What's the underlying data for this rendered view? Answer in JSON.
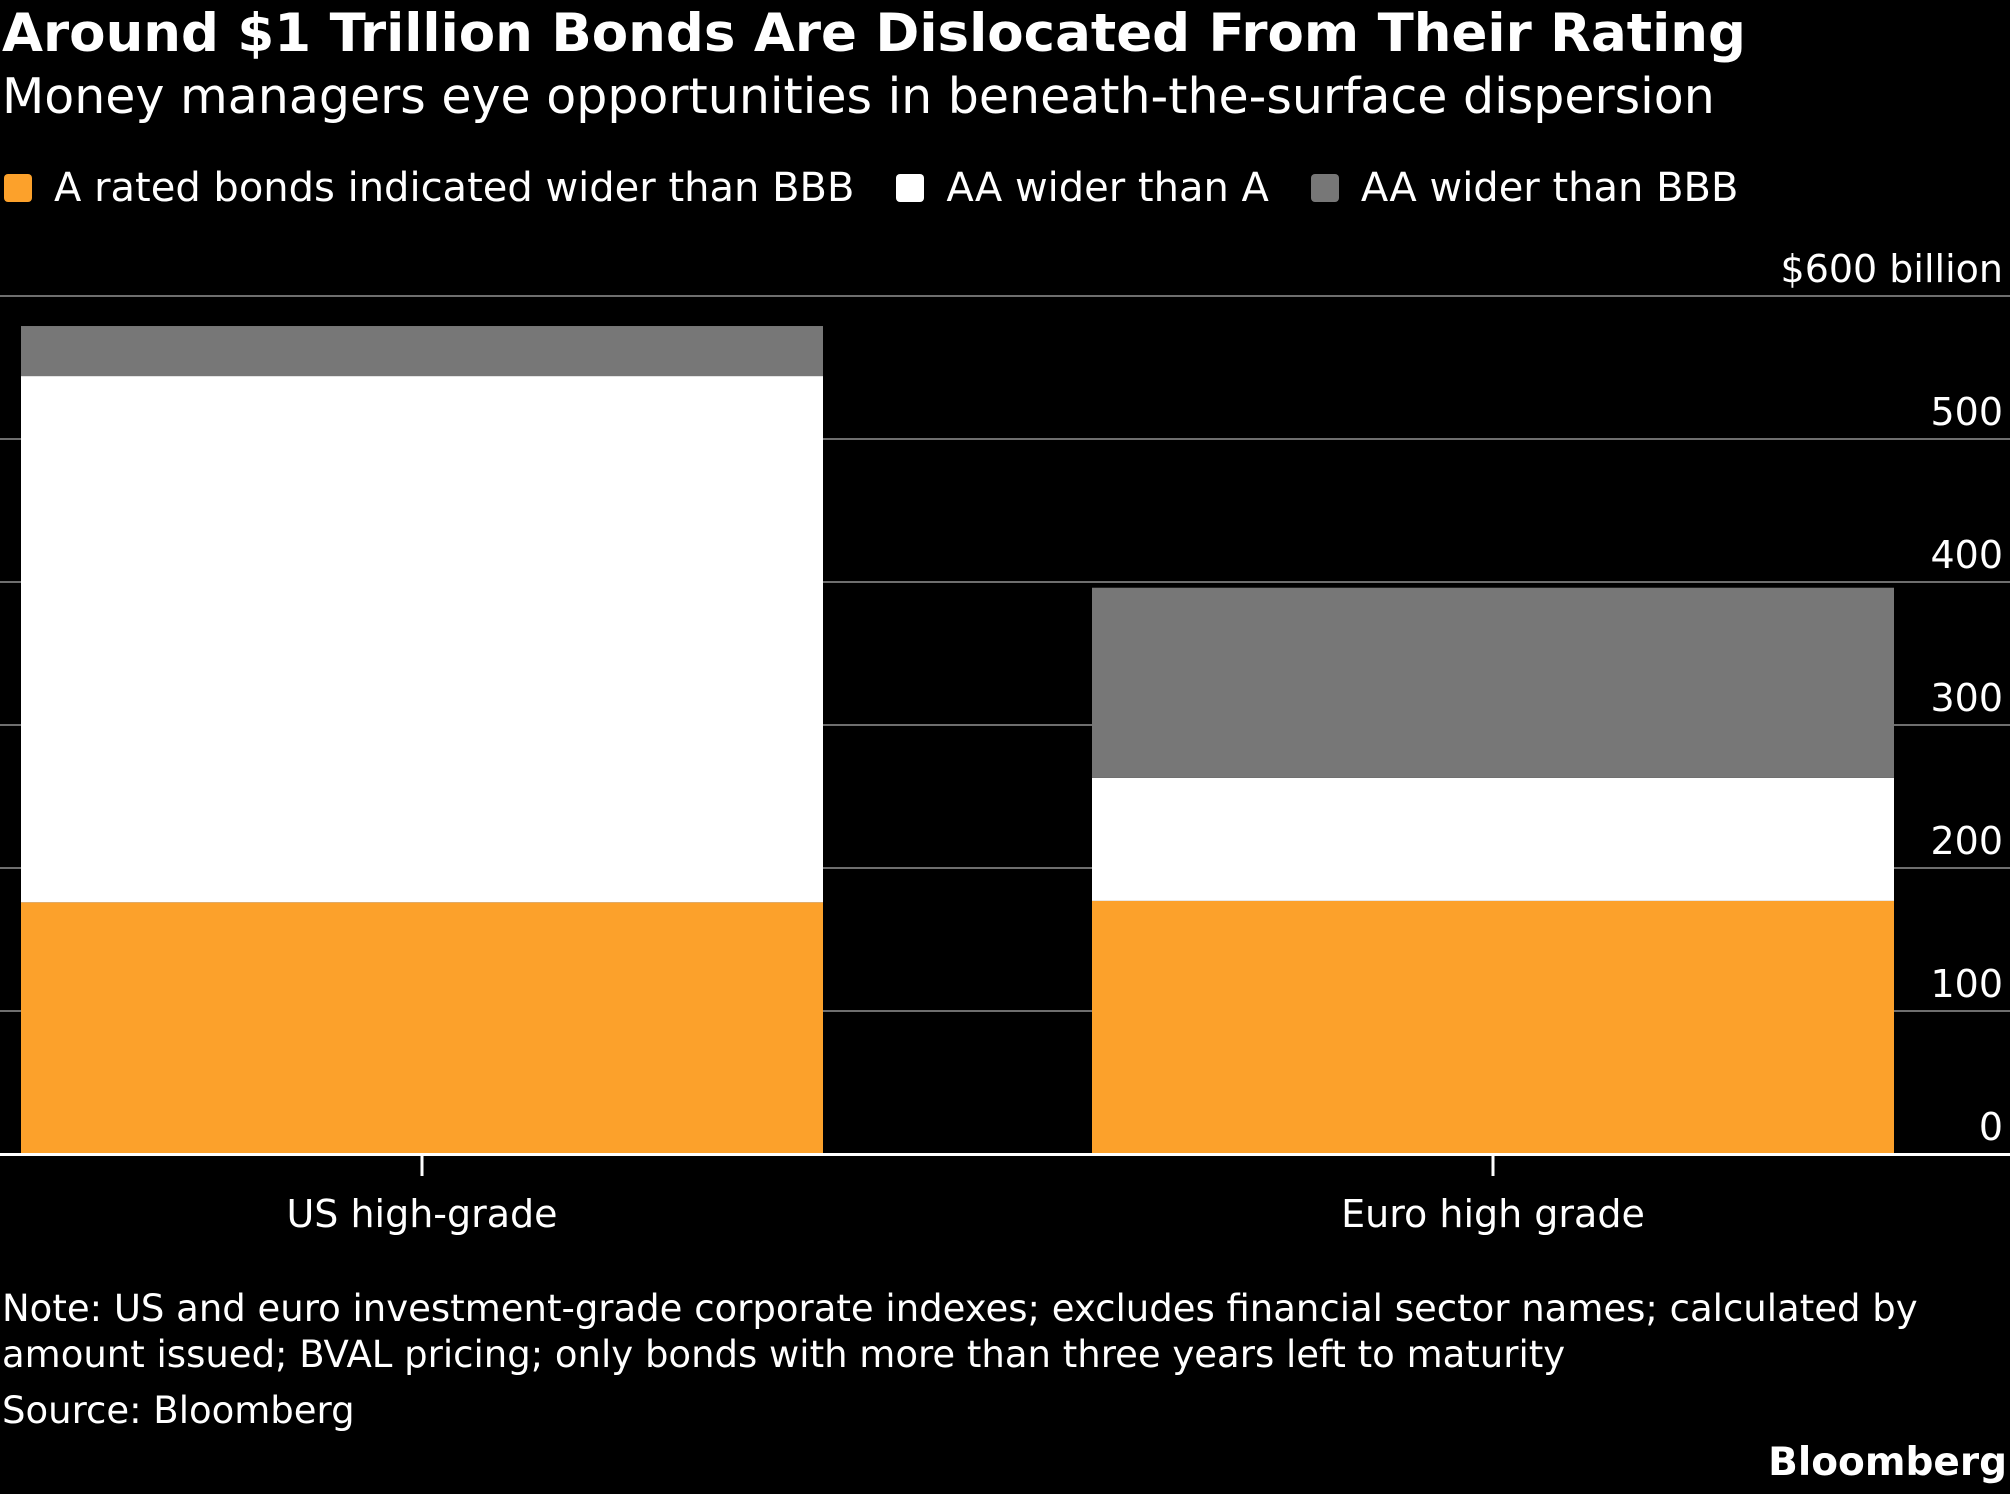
{
  "header": {
    "title": "Around $1 Trillion Bonds Are Dislocated From Their Rating",
    "subtitle": "Money managers eye opportunities in beneath-the-surface dispersion"
  },
  "colors": {
    "background": "#000000",
    "gridline": "#6e6e6e",
    "axis": "#ffffff"
  },
  "chart_data": {
    "type": "bar",
    "stacked": true,
    "categories": [
      "US high-grade",
      "Euro high grade"
    ],
    "series": [
      {
        "name": "A rated bonds indicated wider than BBB",
        "color": "#fca12b",
        "values": [
          176,
          177
        ]
      },
      {
        "name": "AA wider than A",
        "color": "#ffffff",
        "values": [
          368,
          86
        ]
      },
      {
        "name": "AA wider than BBB",
        "color": "#777777",
        "values": [
          35,
          133
        ]
      }
    ],
    "y_ticks": [
      0,
      100,
      200,
      300,
      400,
      500,
      600
    ],
    "y_tick_labels": [
      "0",
      "100",
      "200",
      "300",
      "400",
      "500",
      "$600 billion"
    ],
    "ylim": [
      0,
      600
    ],
    "grid": true,
    "legend_position": "top-left",
    "y_axis_side": "right"
  },
  "footer": {
    "note": "Note: US and euro investment-grade corporate indexes; excludes financial sector names; calculated by amount issued; BVAL pricing; only bonds with more than three years left to maturity",
    "source": "Source: Bloomberg",
    "brand": "Bloomberg"
  }
}
